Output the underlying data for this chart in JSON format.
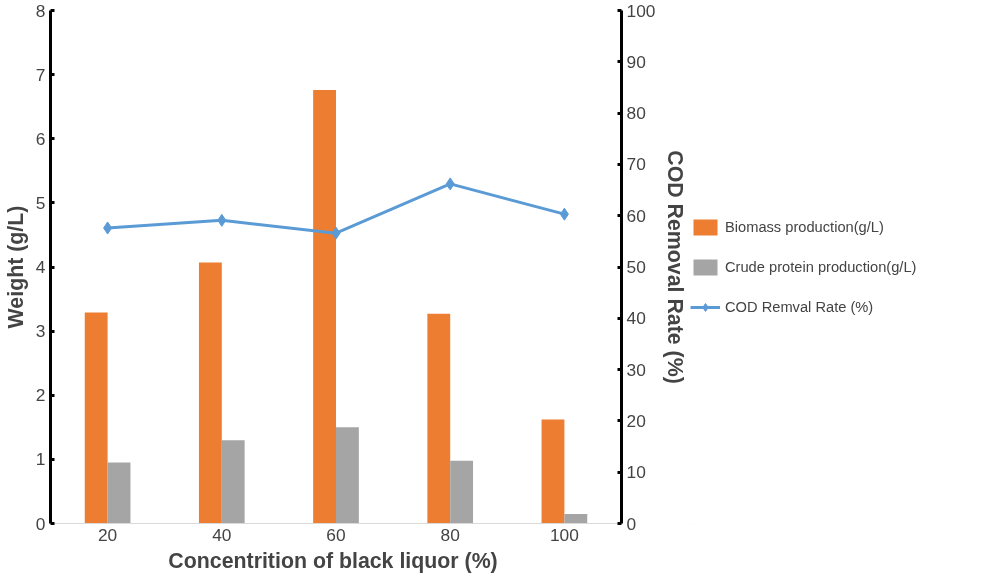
{
  "chart_data": {
    "type": "bar",
    "xlabel": "Concentrition  of black liquor (%)",
    "ylabel": "Weight (g/L)",
    "y2label": "COD Removal Rate (%)",
    "categories": [
      "20",
      "40",
      "60",
      "80",
      "100"
    ],
    "series": [
      {
        "name": "Biomass production(g/L)",
        "color": "#ed7d31",
        "values": [
          3.29,
          4.07,
          6.76,
          3.27,
          1.62
        ]
      },
      {
        "name": "Crude protein production(g/L)",
        "color": "#a5a5a5",
        "values": [
          0.95,
          1.3,
          1.5,
          0.98,
          0.15
        ]
      },
      {
        "name": "COD Remval Rate (%)",
        "type": "line",
        "axis": "y2",
        "color": "#5b9bd5",
        "marker": "diamond",
        "values": [
          57.6,
          59.1,
          56.6,
          66.2,
          60.3
        ]
      }
    ],
    "ylim": [
      0,
      8
    ],
    "yticks": [
      0,
      1,
      2,
      3,
      4,
      5,
      6,
      7,
      8
    ],
    "y2lim": [
      0,
      100
    ],
    "y2ticks": [
      0,
      10,
      20,
      30,
      40,
      50,
      60,
      70,
      80,
      90,
      100
    ],
    "grid": false,
    "legend": "right"
  }
}
